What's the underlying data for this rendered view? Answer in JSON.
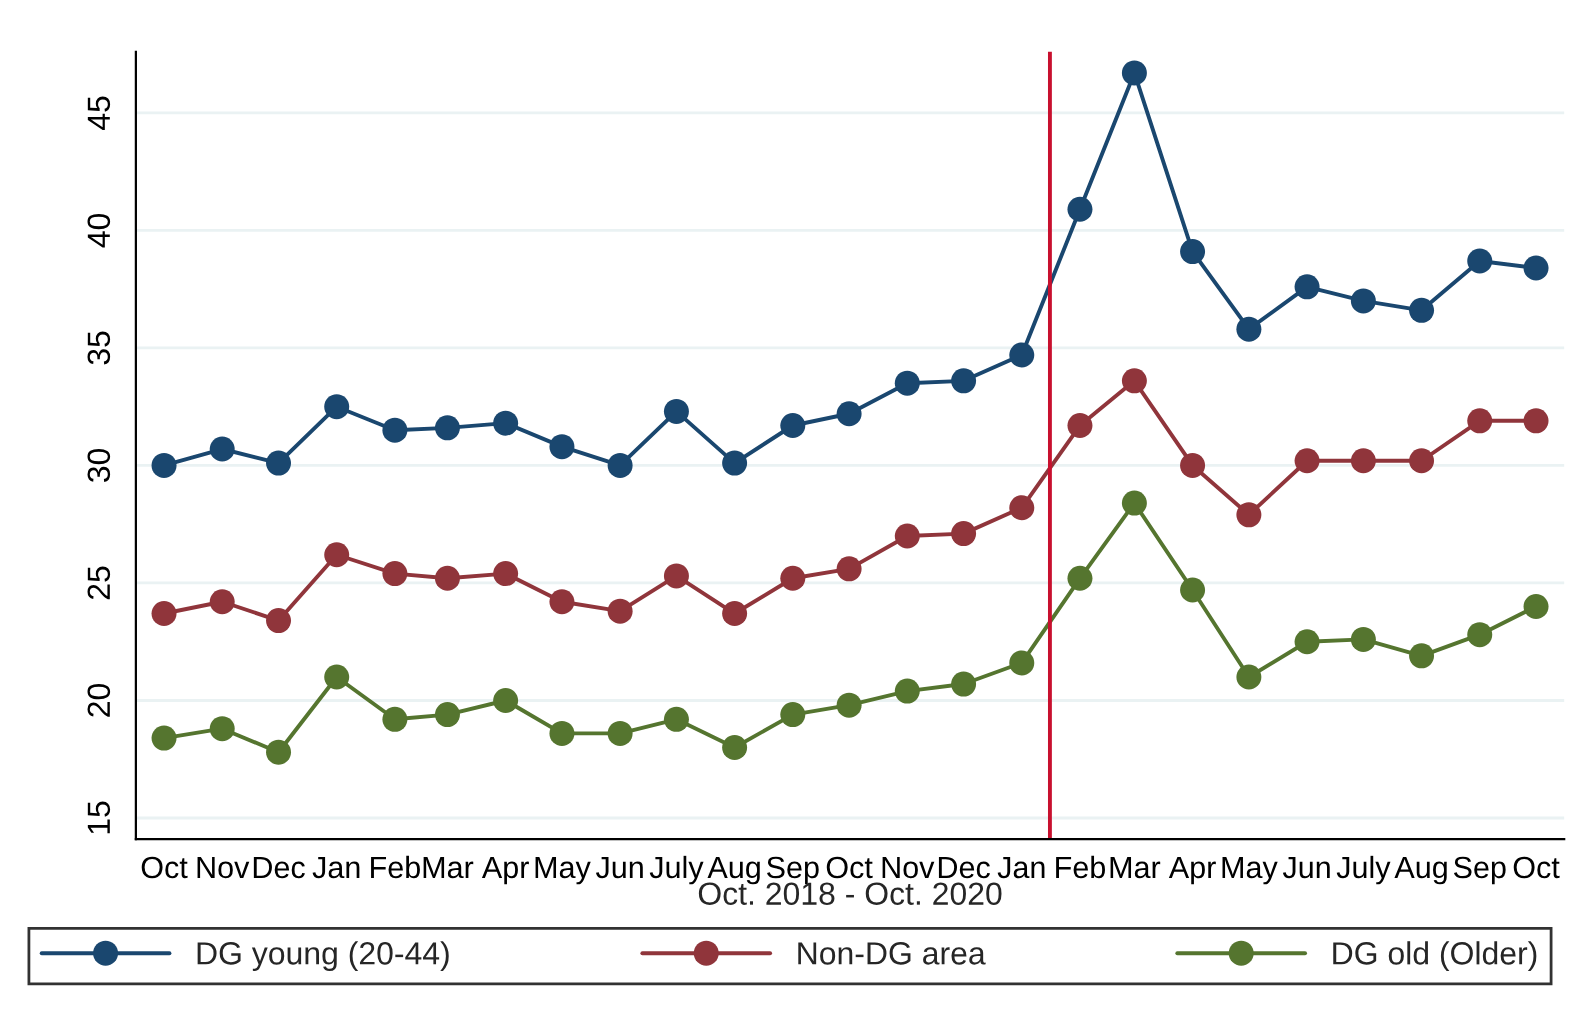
{
  "chart_data": {
    "type": "line",
    "xlabel": "Oct. 2018 - Oct. 2020",
    "x": [
      "2018-10",
      "2018-11",
      "2018-12",
      "2019-01",
      "2019-02",
      "2019-03",
      "2019-04",
      "2019-05",
      "2019-06",
      "2019-07",
      "2019-08",
      "2019-09",
      "2019-10",
      "2019-11",
      "2019-12",
      "2020-01",
      "2020-02",
      "2020-03",
      "2020-04",
      "2020-05",
      "2020-06",
      "2020-07",
      "2020-08",
      "2020-09",
      "2020-10"
    ],
    "xlim": [
      "2018-09-16",
      "2020-10-16"
    ],
    "xticks": [
      {
        "value": "2018-10",
        "label": "Oct"
      },
      {
        "value": "2018-11",
        "label": "Nov"
      },
      {
        "value": "2018-12",
        "label": "Dec"
      },
      {
        "value": "2019-01",
        "label": "Jan"
      },
      {
        "value": "2019-02",
        "label": "Feb"
      },
      {
        "value": "2019-03",
        "label": "Mar"
      },
      {
        "value": "2019-04",
        "label": "Apr"
      },
      {
        "value": "2019-05",
        "label": "May"
      },
      {
        "value": "2019-06",
        "label": "Jun"
      },
      {
        "value": "2019-07",
        "label": "July"
      },
      {
        "value": "2019-08",
        "label": "Aug"
      },
      {
        "value": "2019-09",
        "label": "Sep"
      },
      {
        "value": "2019-10",
        "label": "Oct"
      },
      {
        "value": "2019-11",
        "label": "Nov"
      },
      {
        "value": "2019-12",
        "label": "Dec"
      },
      {
        "value": "2020-01",
        "label": "Jan"
      },
      {
        "value": "2020-02",
        "label": "Feb"
      },
      {
        "value": "2020-03",
        "label": "Mar"
      },
      {
        "value": "2020-04",
        "label": "Apr"
      },
      {
        "value": "2020-05",
        "label": "May"
      },
      {
        "value": "2020-06",
        "label": "Jun"
      },
      {
        "value": "2020-07",
        "label": "July"
      },
      {
        "value": "2020-08",
        "label": "Aug"
      },
      {
        "value": "2020-09",
        "label": "Sep"
      },
      {
        "value": "2020-10",
        "label": "Oct"
      }
    ],
    "series": [
      {
        "name": "DG young (20-44)",
        "color": "#1a476f",
        "values": [
          30.0,
          30.7,
          30.1,
          32.5,
          31.5,
          31.6,
          31.8,
          30.8,
          30.0,
          32.3,
          30.1,
          31.7,
          32.2,
          33.5,
          33.6,
          34.7,
          40.9,
          46.7,
          39.1,
          35.8,
          37.6,
          37.0,
          36.6,
          38.7,
          38.4
        ]
      },
      {
        "name": "Non-DG area",
        "color": "#90353b",
        "values": [
          23.7,
          24.2,
          23.4,
          26.2,
          25.4,
          25.2,
          25.4,
          24.2,
          23.8,
          25.3,
          23.7,
          25.2,
          25.6,
          27.0,
          27.1,
          28.2,
          31.7,
          33.6,
          30.0,
          27.9,
          30.2,
          30.2,
          30.2,
          31.9,
          31.9
        ]
      },
      {
        "name": "DG old (Older)",
        "color": "#55752f",
        "values": [
          18.4,
          18.8,
          17.8,
          21.0,
          19.2,
          19.4,
          20.0,
          18.6,
          18.6,
          19.2,
          18.0,
          19.4,
          19.8,
          20.4,
          20.7,
          21.6,
          25.2,
          28.4,
          24.7,
          21.0,
          22.5,
          22.6,
          21.9,
          22.8,
          24.0
        ]
      }
    ],
    "ylim": [
      14.1,
      47.6
    ],
    "yticks": [
      15,
      20,
      25,
      30,
      35,
      40,
      45
    ],
    "ref_lines": [
      {
        "axis": "x",
        "value": "2020-01-16",
        "color": "#c8102e"
      }
    ],
    "grid": "y",
    "legend": "bottom",
    "marker": "circle",
    "line_style": "solid"
  }
}
